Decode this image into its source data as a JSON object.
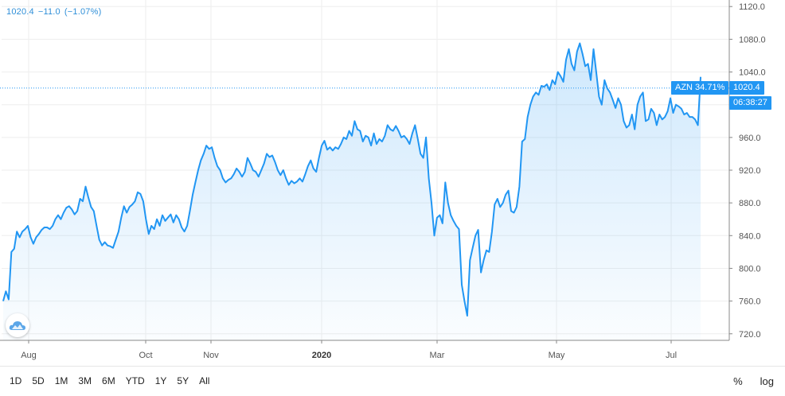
{
  "header": {
    "price": "1020.4",
    "change": "−11.0",
    "change_pct": "(−1.07%)",
    "color": "#2f8fd8"
  },
  "tags": {
    "symbol_label": "AZN 34.71%",
    "price_label": "1020.4",
    "time_label": "06:38:27"
  },
  "logo": {
    "icon": "cloud-logo-icon"
  },
  "toolbar": {
    "ranges": [
      "1D",
      "5D",
      "1M",
      "3M",
      "6M",
      "YTD",
      "1Y",
      "5Y",
      "All"
    ],
    "scales": [
      "%",
      "log"
    ]
  },
  "chart_data": {
    "type": "area",
    "series": [
      {
        "name": "AZN",
        "color": "#2196f3",
        "values": [
          760,
          772,
          762,
          820,
          824,
          845,
          838,
          845,
          848,
          852,
          838,
          830,
          838,
          842,
          847,
          850,
          850,
          848,
          852,
          860,
          865,
          860,
          868,
          874,
          876,
          872,
          866,
          870,
          885,
          882,
          900,
          887,
          875,
          870,
          852,
          835,
          828,
          832,
          828,
          827,
          825,
          835,
          845,
          862,
          876,
          868,
          875,
          878,
          882,
          893,
          891,
          882,
          860,
          842,
          852,
          848,
          860,
          852,
          865,
          858,
          862,
          866,
          856,
          865,
          860,
          850,
          845,
          852,
          870,
          890,
          905,
          920,
          932,
          940,
          950,
          946,
          948,
          935,
          925,
          920,
          910,
          905,
          908,
          910,
          915,
          922,
          918,
          912,
          918,
          935,
          928,
          920,
          918,
          912,
          920,
          928,
          940,
          936,
          938,
          930,
          920,
          914,
          920,
          910,
          902,
          907,
          904,
          906,
          910,
          906,
          915,
          925,
          932,
          922,
          918,
          935,
          950,
          956,
          945,
          948,
          944,
          948,
          946,
          952,
          960,
          958,
          968,
          962,
          980,
          970,
          968,
          955,
          962,
          960,
          950,
          965,
          952,
          958,
          955,
          962,
          975,
          970,
          968,
          974,
          968,
          960,
          962,
          958,
          952,
          965,
          975,
          958,
          940,
          935,
          960,
          910,
          880,
          840,
          862,
          865,
          855,
          905,
          880,
          865,
          858,
          852,
          848,
          780,
          760,
          742,
          810,
          825,
          840,
          847,
          795,
          810,
          822,
          820,
          845,
          878,
          885,
          875,
          880,
          890,
          895,
          870,
          868,
          875,
          900,
          955,
          958,
          985,
          1000,
          1010,
          1015,
          1012,
          1023,
          1022,
          1025,
          1018,
          1030,
          1025,
          1040,
          1035,
          1028,
          1055,
          1068,
          1050,
          1042,
          1065,
          1075,
          1062,
          1047,
          1050,
          1030,
          1068,
          1040,
          1010,
          1000,
          1030,
          1020,
          1015,
          1006,
          996,
          1008,
          1000,
          980,
          972,
          975,
          988,
          970,
          1000,
          1010,
          1015,
          980,
          982,
          995,
          990,
          975,
          988,
          982,
          985,
          992,
          1008,
          990,
          1000,
          998,
          995,
          988,
          990,
          985,
          985,
          982,
          975,
          1034
        ]
      }
    ],
    "x_ticks": [
      "Aug",
      "Oct",
      "Nov",
      "2020",
      "Mar",
      "May",
      "Jul"
    ],
    "y_ticks": [
      "720.0",
      "760.0",
      "800.0",
      "840.0",
      "880.0",
      "920.0",
      "960.0",
      "1000.0",
      "1040.0",
      "1080.0",
      "1120.0"
    ],
    "ylim": [
      712,
      1128
    ],
    "last_price_line": 1020.4,
    "grid": true,
    "title": "",
    "xlabel": "",
    "ylabel": ""
  }
}
